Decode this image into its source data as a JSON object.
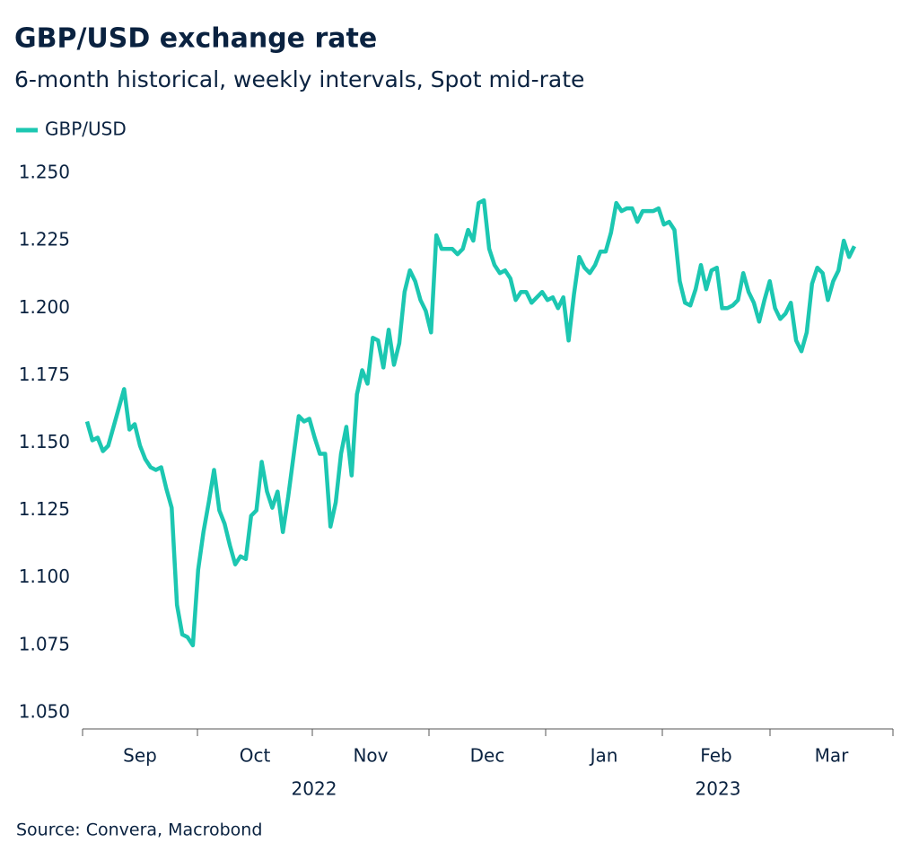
{
  "chart_data": {
    "type": "line",
    "title": "GBP/USD exchange rate",
    "subtitle": "6-month historical, weekly intervals, Spot mid-rate",
    "source": "Source: Convera, Macrobond",
    "months": [
      "Sep",
      "Oct",
      "Nov",
      "Dec",
      "Jan",
      "Feb",
      "Mar"
    ],
    "years": [
      "2022",
      "2023"
    ],
    "series": [
      {
        "name": "GBP/USD",
        "color": "#1cc7b1",
        "values": [
          1.158,
          1.151,
          1.152,
          1.147,
          1.149,
          1.156,
          1.163,
          1.17,
          1.155,
          1.157,
          1.149,
          1.144,
          1.141,
          1.14,
          1.141,
          1.133,
          1.126,
          1.09,
          1.079,
          1.078,
          1.075,
          1.103,
          1.117,
          1.128,
          1.14,
          1.125,
          1.12,
          1.112,
          1.105,
          1.108,
          1.107,
          1.123,
          1.125,
          1.143,
          1.132,
          1.126,
          1.132,
          1.117,
          1.13,
          1.145,
          1.16,
          1.158,
          1.159,
          1.152,
          1.146,
          1.146,
          1.119,
          1.128,
          1.146,
          1.156,
          1.138,
          1.168,
          1.177,
          1.172,
          1.189,
          1.188,
          1.178,
          1.192,
          1.179,
          1.187,
          1.206,
          1.214,
          1.21,
          1.203,
          1.199,
          1.191,
          1.227,
          1.222,
          1.222,
          1.222,
          1.22,
          1.222,
          1.229,
          1.225,
          1.239,
          1.24,
          1.222,
          1.216,
          1.213,
          1.214,
          1.211,
          1.203,
          1.206,
          1.206,
          1.202,
          1.204,
          1.206,
          1.203,
          1.204,
          1.2,
          1.204,
          1.188,
          1.205,
          1.219,
          1.215,
          1.213,
          1.216,
          1.221,
          1.221,
          1.228,
          1.239,
          1.236,
          1.237,
          1.237,
          1.232,
          1.236,
          1.236,
          1.236,
          1.237,
          1.231,
          1.232,
          1.229,
          1.21,
          1.202,
          1.201,
          1.207,
          1.216,
          1.207,
          1.214,
          1.215,
          1.2,
          1.2,
          1.201,
          1.203,
          1.213,
          1.206,
          1.202,
          1.195,
          1.203,
          1.21,
          1.2,
          1.196,
          1.198,
          1.202,
          1.188,
          1.184,
          1.191,
          1.209,
          1.215,
          1.213,
          1.203,
          1.21,
          1.214,
          1.225,
          1.219,
          1.223
        ]
      }
    ],
    "ylim": [
      1.044,
      1.256
    ],
    "yticks": [
      {
        "value": 1.05,
        "label": "1.050"
      },
      1.075,
      {
        "value": 1.1,
        "label": "1.100"
      },
      1.125,
      {
        "value": 1.15,
        "label": "1.150"
      },
      1.175,
      {
        "value": 1.2,
        "label": "1.200"
      },
      1.225,
      {
        "value": 1.25,
        "label": "1.250"
      }
    ],
    "grid": false
  }
}
